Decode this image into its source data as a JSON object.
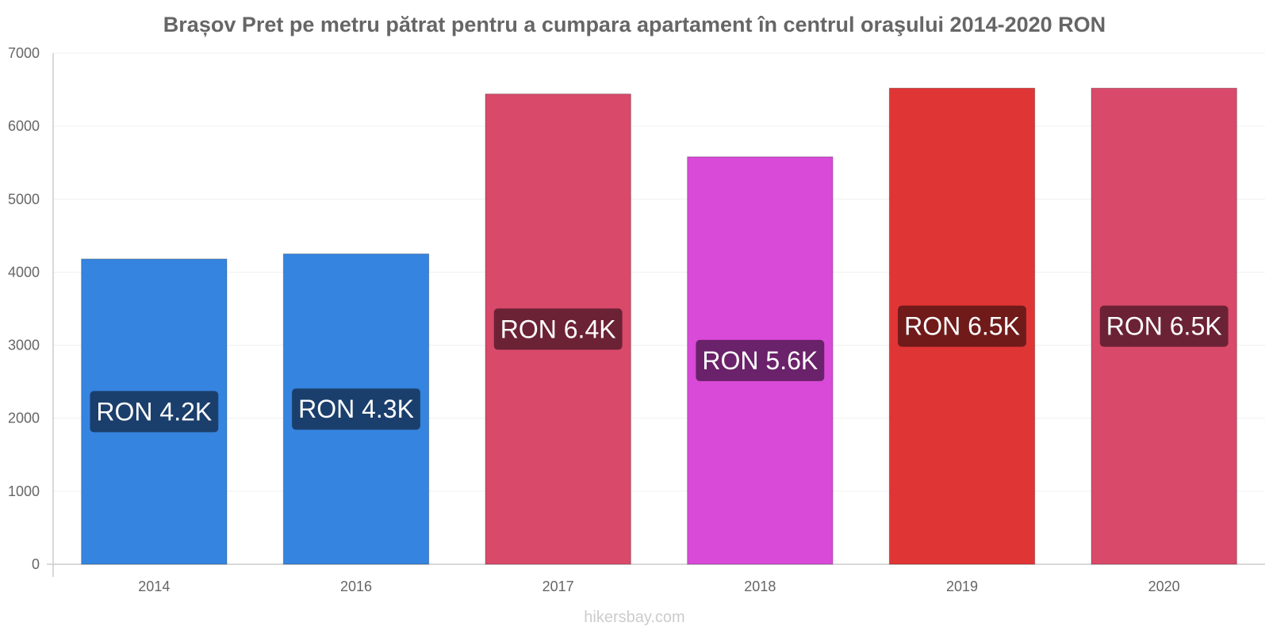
{
  "chart_data": {
    "type": "bar",
    "title": "Brașov Pret pe metru pătrat pentru a cumpara apartament în centrul oraşului 2014-2020 RON",
    "xlabel": "",
    "ylabel": "",
    "categories": [
      "2014",
      "2016",
      "2017",
      "2018",
      "2019",
      "2020"
    ],
    "values": [
      4180,
      4250,
      6440,
      5580,
      6520,
      6520
    ],
    "data_labels": [
      "RON 4.2K",
      "RON 4.3K",
      "RON 6.4K",
      "RON 5.6K",
      "RON 6.5K",
      "RON 6.5K"
    ],
    "bar_colors": [
      "#3584df",
      "#3584df",
      "#d9496a",
      "#d84ad7",
      "#e03535",
      "#d9496a"
    ],
    "label_bg_colors": [
      "#1b3f6c",
      "#1b3f6c",
      "#6b2235",
      "#6a226a",
      "#701a1a",
      "#6b2235"
    ],
    "ylim": [
      0,
      7000
    ],
    "yticks": [
      "0",
      "1000",
      "2000",
      "3000",
      "4000",
      "5000",
      "6000",
      "7000"
    ],
    "grid": true,
    "legend": "none"
  },
  "footer": {
    "watermark": "hikersbay.com"
  }
}
